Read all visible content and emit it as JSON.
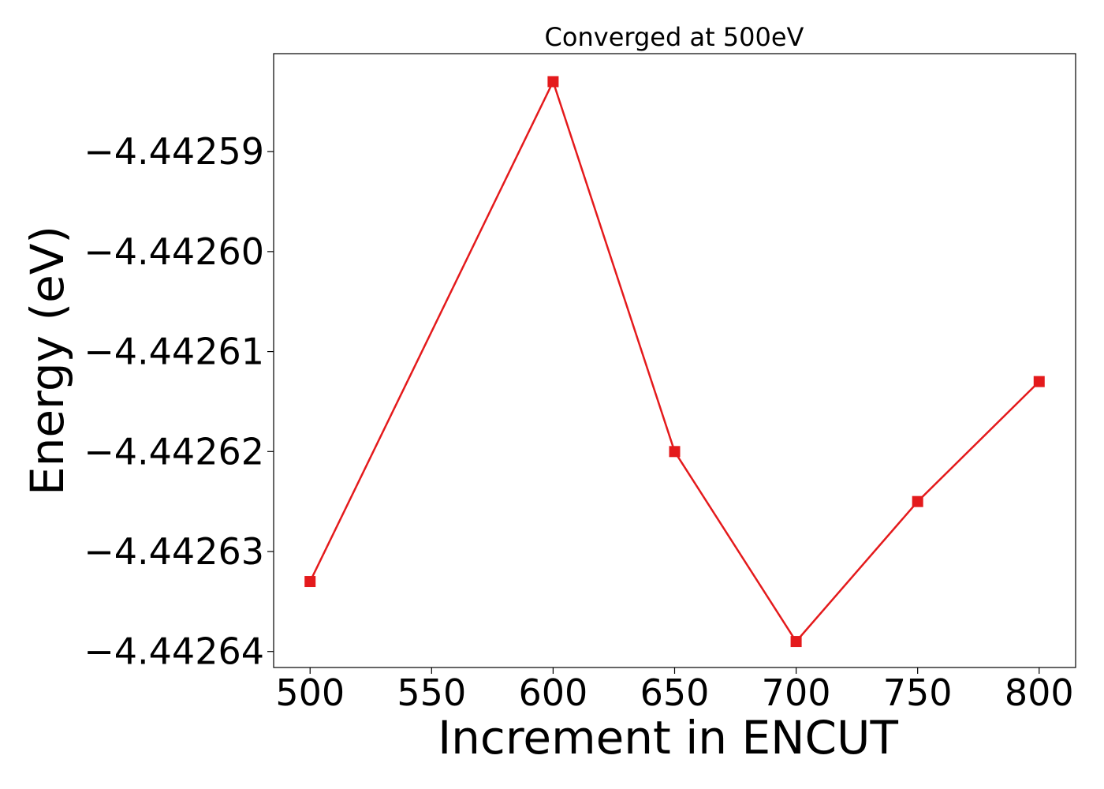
{
  "chart_data": {
    "type": "line",
    "title": "Converged at 500eV",
    "xlabel": "Increment in ENCUT",
    "ylabel": "Energy (eV)",
    "x": [
      500,
      600,
      650,
      700,
      750,
      800
    ],
    "series": [
      {
        "values": [
          -4.442633,
          -4.442583,
          -4.44262,
          -4.442639,
          -4.442625,
          -4.442613
        ],
        "color": "#e41a1c",
        "marker": "square"
      }
    ],
    "xticks": [
      500,
      550,
      600,
      650,
      700,
      750,
      800
    ],
    "xtick_labels": [
      "500",
      "550",
      "600",
      "650",
      "700",
      "750",
      "800"
    ],
    "yticks": [
      -4.44259,
      -4.4426,
      -4.44261,
      -4.44262,
      -4.44263,
      -4.44264
    ],
    "ytick_labels": [
      "−4.44259",
      "−4.44260",
      "−4.44261",
      "−4.44262",
      "−4.44263",
      "−4.44264"
    ],
    "xlim": [
      485,
      815
    ],
    "ylim": [
      -4.4426416,
      -4.4425802
    ],
    "grid": false,
    "legend": "none"
  }
}
